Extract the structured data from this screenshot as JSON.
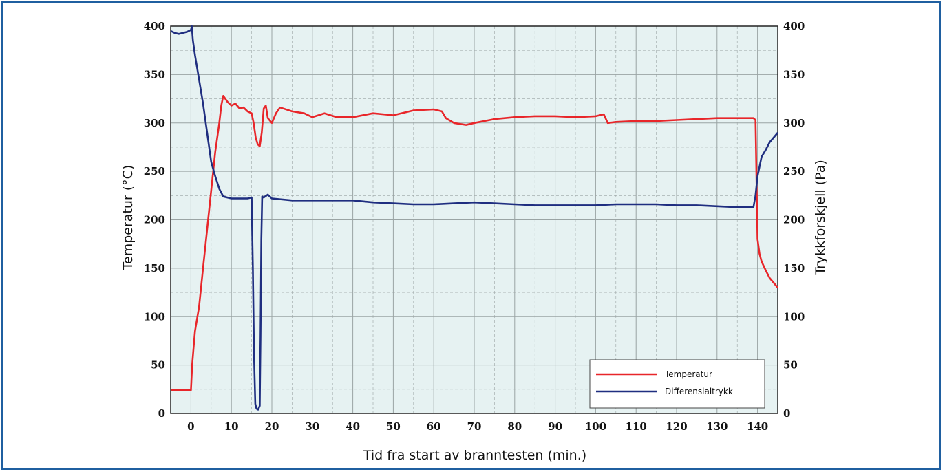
{
  "chart_data": {
    "type": "line",
    "xlabel": "Tid fra start av branntesten (min.)",
    "ylabel_left": "Temperatur (°C)",
    "ylabel_right": "Trykkforskjell (Pa)",
    "xlim": [
      -5,
      145
    ],
    "ylim_left": [
      0,
      400
    ],
    "ylim_right": [
      0,
      400
    ],
    "x_ticks": [
      0,
      10,
      20,
      30,
      40,
      50,
      60,
      70,
      80,
      90,
      100,
      110,
      120,
      130,
      140
    ],
    "y_ticks_left": [
      0,
      50,
      100,
      150,
      200,
      250,
      300,
      350,
      400
    ],
    "y_ticks_right": [
      0,
      50,
      100,
      150,
      200,
      250,
      300,
      350,
      400
    ],
    "grid": true,
    "legend_position": "bottom-right",
    "colors": {
      "background": "#e6f2f2",
      "grid": "#9aa4a4",
      "frame": "#1f5fa0"
    },
    "series": [
      {
        "name": "Temperatur",
        "color": "#e8262a",
        "axis": "left",
        "points": [
          [
            -5,
            24
          ],
          [
            0,
            24
          ],
          [
            0.3,
            50
          ],
          [
            0.6,
            65
          ],
          [
            1,
            85
          ],
          [
            2,
            110
          ],
          [
            3,
            150
          ],
          [
            4,
            190
          ],
          [
            5,
            230
          ],
          [
            6,
            270
          ],
          [
            7,
            300
          ],
          [
            7.5,
            318
          ],
          [
            8,
            328
          ],
          [
            9,
            322
          ],
          [
            10,
            318
          ],
          [
            11,
            320
          ],
          [
            12,
            315
          ],
          [
            13,
            316
          ],
          [
            14,
            312
          ],
          [
            15,
            310
          ],
          [
            15.5,
            300
          ],
          [
            16,
            285
          ],
          [
            16.5,
            278
          ],
          [
            17,
            276
          ],
          [
            17.5,
            290
          ],
          [
            18,
            315
          ],
          [
            18.5,
            318
          ],
          [
            19,
            305
          ],
          [
            20,
            300
          ],
          [
            21,
            310
          ],
          [
            22,
            316
          ],
          [
            25,
            312
          ],
          [
            28,
            310
          ],
          [
            30,
            306
          ],
          [
            33,
            310
          ],
          [
            36,
            306
          ],
          [
            40,
            306
          ],
          [
            45,
            310
          ],
          [
            50,
            308
          ],
          [
            55,
            313
          ],
          [
            60,
            314
          ],
          [
            62,
            312
          ],
          [
            63,
            305
          ],
          [
            65,
            300
          ],
          [
            68,
            298
          ],
          [
            70,
            300
          ],
          [
            75,
            304
          ],
          [
            80,
            306
          ],
          [
            85,
            307
          ],
          [
            90,
            307
          ],
          [
            95,
            306
          ],
          [
            100,
            307
          ],
          [
            102,
            309
          ],
          [
            103,
            300
          ],
          [
            105,
            301
          ],
          [
            110,
            302
          ],
          [
            115,
            302
          ],
          [
            120,
            303
          ],
          [
            125,
            304
          ],
          [
            130,
            305
          ],
          [
            135,
            305
          ],
          [
            139,
            305
          ],
          [
            139.5,
            303
          ],
          [
            140,
            180
          ],
          [
            140.5,
            165
          ],
          [
            141,
            157
          ],
          [
            142,
            148
          ],
          [
            143,
            140
          ],
          [
            144,
            135
          ],
          [
            145,
            130
          ]
        ]
      },
      {
        "name": "Differensialtrykk",
        "color": "#1f2e80",
        "axis": "right",
        "points": [
          [
            -5,
            395
          ],
          [
            -4,
            393
          ],
          [
            -3,
            392
          ],
          [
            -2,
            393
          ],
          [
            -1,
            394
          ],
          [
            0,
            396
          ],
          [
            0.2,
            400
          ],
          [
            0.5,
            385
          ],
          [
            1,
            370
          ],
          [
            2,
            345
          ],
          [
            3,
            320
          ],
          [
            4,
            290
          ],
          [
            5,
            260
          ],
          [
            6,
            245
          ],
          [
            7,
            232
          ],
          [
            8,
            224
          ],
          [
            10,
            222
          ],
          [
            12,
            222
          ],
          [
            14,
            222
          ],
          [
            15,
            223
          ],
          [
            15.3,
            150
          ],
          [
            15.6,
            60
          ],
          [
            15.9,
            10
          ],
          [
            16.2,
            5
          ],
          [
            16.6,
            4
          ],
          [
            17,
            8
          ],
          [
            17.2,
            80
          ],
          [
            17.4,
            180
          ],
          [
            17.6,
            224
          ],
          [
            18,
            223
          ],
          [
            19,
            226
          ],
          [
            20,
            222
          ],
          [
            25,
            220
          ],
          [
            30,
            220
          ],
          [
            35,
            220
          ],
          [
            40,
            220
          ],
          [
            45,
            218
          ],
          [
            50,
            217
          ],
          [
            55,
            216
          ],
          [
            60,
            216
          ],
          [
            65,
            217
          ],
          [
            70,
            218
          ],
          [
            75,
            217
          ],
          [
            80,
            216
          ],
          [
            85,
            215
          ],
          [
            90,
            215
          ],
          [
            95,
            215
          ],
          [
            100,
            215
          ],
          [
            105,
            216
          ],
          [
            110,
            216
          ],
          [
            115,
            216
          ],
          [
            120,
            215
          ],
          [
            125,
            215
          ],
          [
            130,
            214
          ],
          [
            135,
            213
          ],
          [
            139,
            213
          ],
          [
            139.5,
            225
          ],
          [
            140,
            245
          ],
          [
            141,
            265
          ],
          [
            142,
            272
          ],
          [
            143,
            280
          ],
          [
            144,
            285
          ],
          [
            145,
            290
          ]
        ]
      }
    ]
  }
}
